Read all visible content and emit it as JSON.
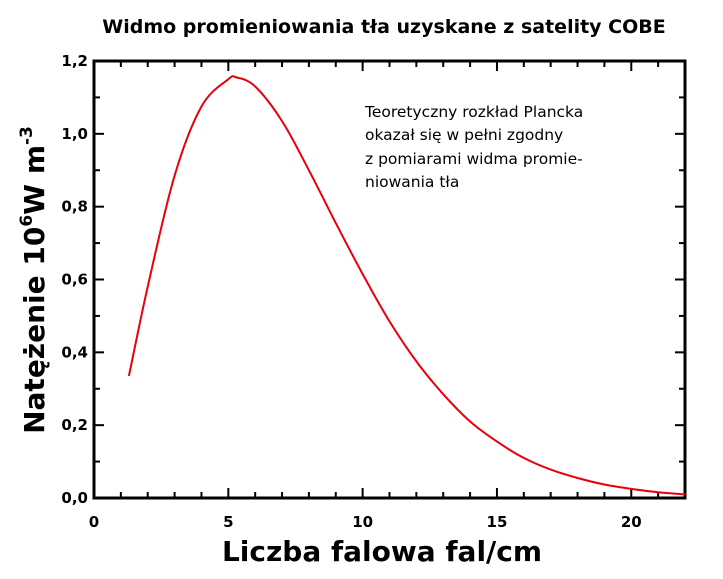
{
  "chart_data": {
    "type": "line",
    "title": "Widmo promieniowania tła uzyskane z satelity COBE",
    "xlabel": "Liczba falowa fal/cm",
    "ylabel": {
      "main": "Natężenie 10",
      "exp1": "6",
      "unit": "W m",
      "exp2": "-3"
    },
    "xlim": [
      0,
      22
    ],
    "ylim": [
      0,
      1.2
    ],
    "x_ticks": [
      0,
      5,
      10,
      15,
      20
    ],
    "x_tick_labels": [
      "0",
      "5",
      "10",
      "15",
      "20"
    ],
    "y_ticks": [
      0,
      0.2,
      0.4,
      0.6,
      0.8,
      1.0,
      1.2
    ],
    "y_tick_labels": [
      "0,0",
      "0,2",
      "0,4",
      "0,6",
      "0,8",
      "1,0",
      "1,2"
    ],
    "grid": false,
    "annotation": [
      "Teoretyczny rozkład Plancka",
      "okazał się w pełni zgodny",
      "z pomiarami widma promie-",
      "niowania tła"
    ],
    "series": [
      {
        "color": "#e8000b",
        "x": [
          1.3,
          2.0,
          3.0,
          4.0,
          5.0,
          5.3,
          6.0,
          7.0,
          8.0,
          9.0,
          10.0,
          11.0,
          12.0,
          13.0,
          14.0,
          15.0,
          16.0,
          17.0,
          18.0,
          19.0,
          20.0,
          21.0,
          22.0
        ],
        "y": [
          0.335,
          0.58,
          0.885,
          1.075,
          1.15,
          1.155,
          1.13,
          1.035,
          0.9,
          0.755,
          0.615,
          0.485,
          0.375,
          0.285,
          0.21,
          0.155,
          0.11,
          0.078,
          0.055,
          0.037,
          0.025,
          0.016,
          0.01
        ]
      }
    ]
  }
}
